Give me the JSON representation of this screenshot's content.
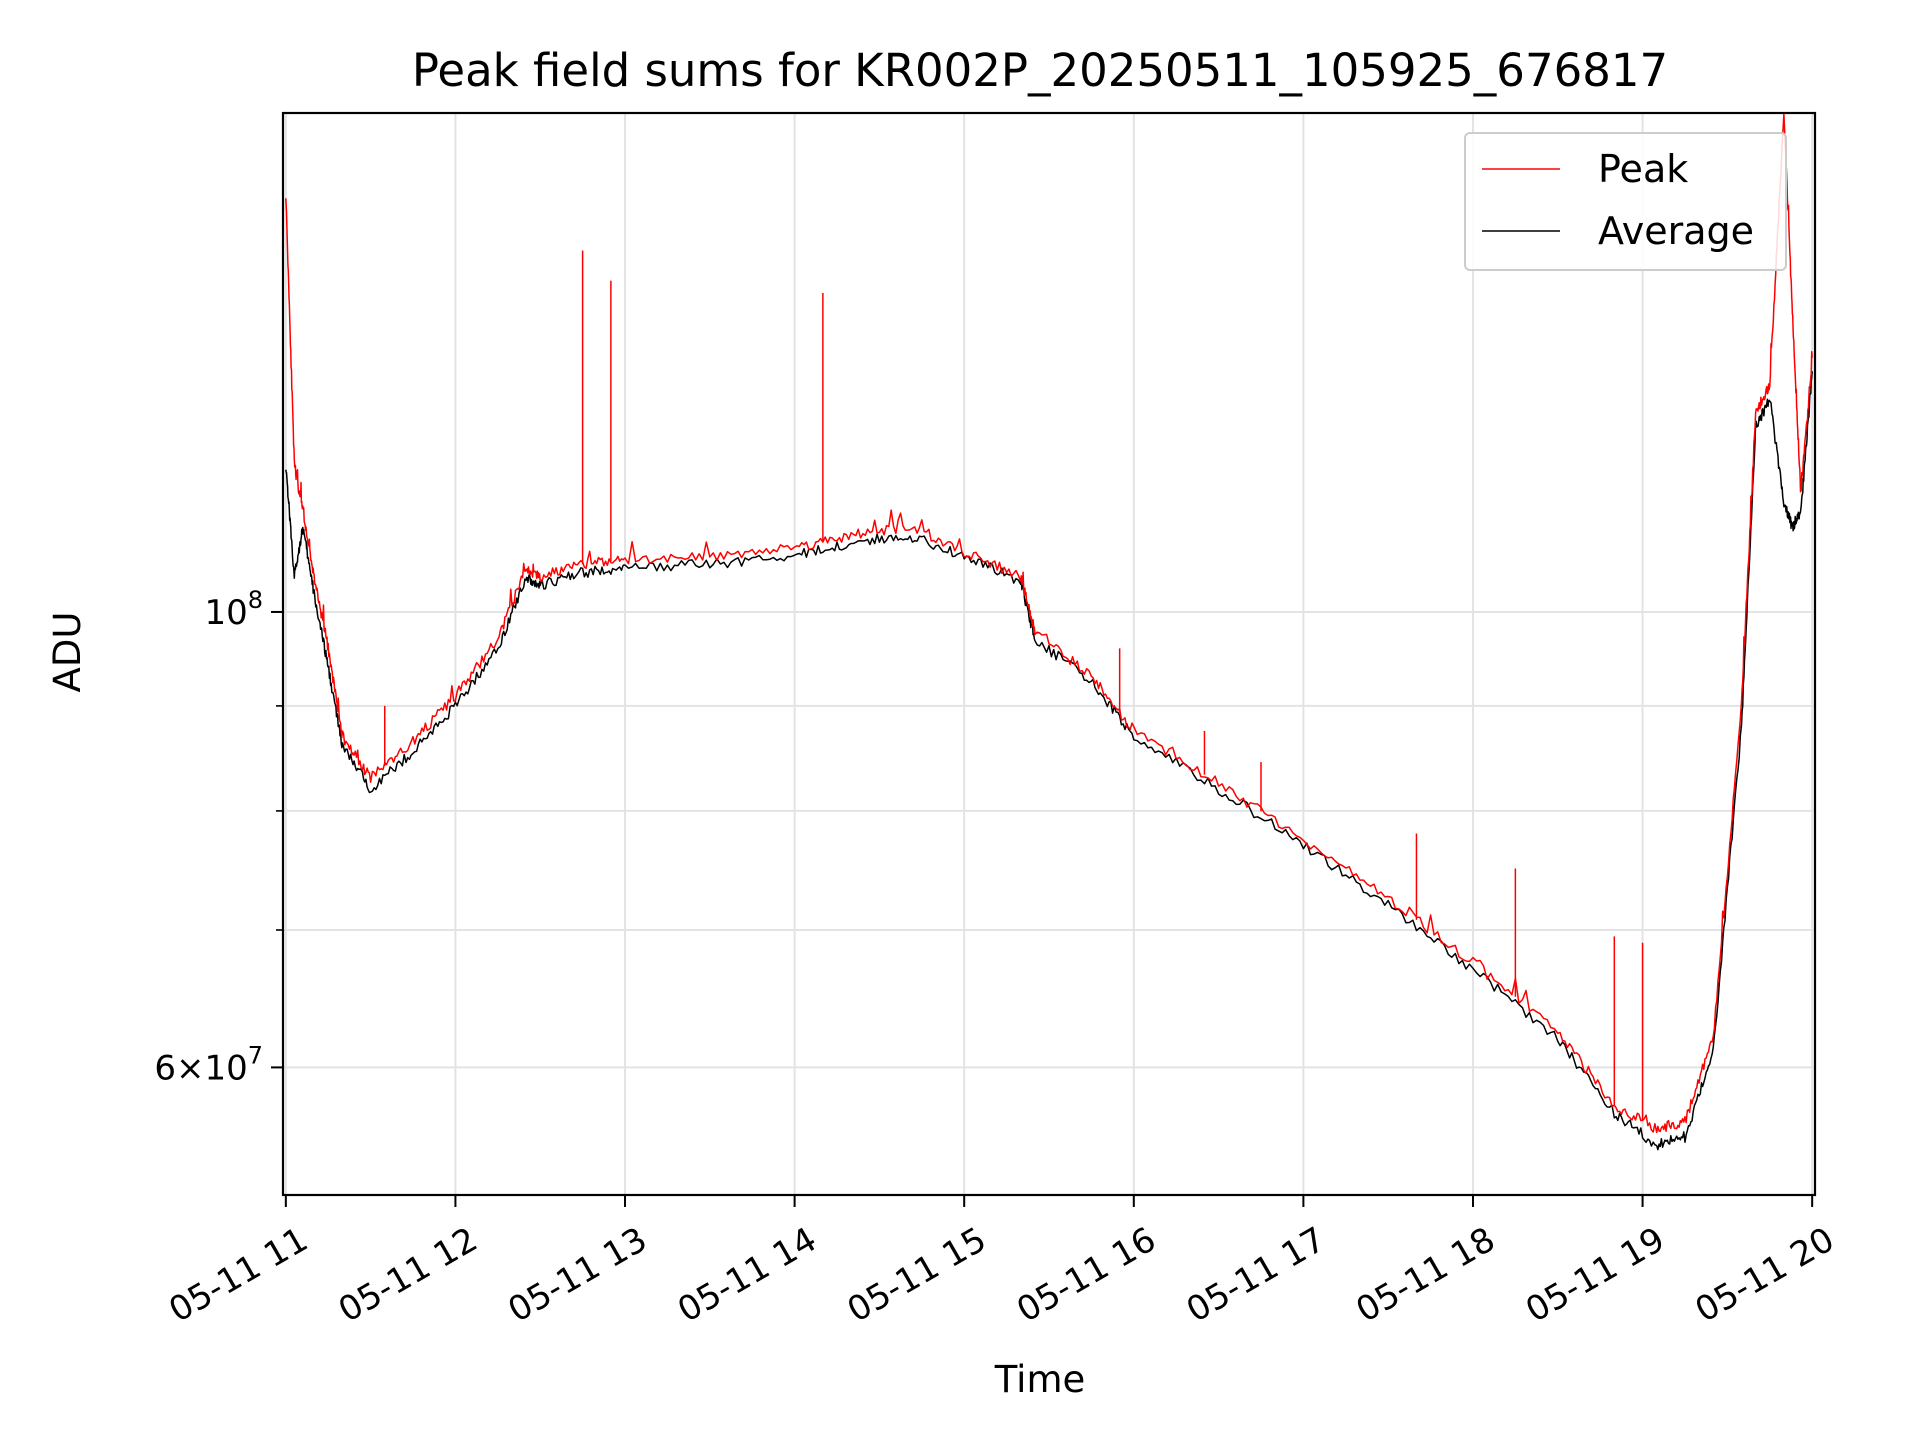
{
  "chart_data": {
    "type": "line",
    "title": "Peak field sums for KR002P_20250511_105925_676817",
    "xlabel": "Time",
    "ylabel": "ADU",
    "yscale": "log",
    "xlim": [
      "05-11 10:59",
      "05-11 20:01"
    ],
    "ylim": [
      52000000,
      175000000
    ],
    "grid": true,
    "legend_position": "top-right",
    "x_ticks": [
      "05-11 11",
      "05-11 12",
      "05-11 13",
      "05-11 14",
      "05-11 15",
      "05-11 16",
      "05-11 17",
      "05-11 18",
      "05-11 19",
      "05-11 20"
    ],
    "y_ticks": [
      "10^8",
      "6×10^7"
    ],
    "x": [
      "05-11 11:00",
      "05-11 11:03",
      "05-11 11:06",
      "05-11 11:10",
      "05-11 11:15",
      "05-11 11:20",
      "05-11 11:30",
      "05-11 11:45",
      "05-11 12:00",
      "05-11 12:15",
      "05-11 12:25",
      "05-11 12:30",
      "05-11 12:45",
      "05-11 13:00",
      "05-11 13:30",
      "05-11 14:00",
      "05-11 14:20",
      "05-11 14:40",
      "05-11 15:00",
      "05-11 15:20",
      "05-11 15:25",
      "05-11 15:45",
      "05-11 16:00",
      "05-11 16:30",
      "05-11 17:00",
      "05-11 17:30",
      "05-11 18:00",
      "05-11 18:30",
      "05-11 18:50",
      "05-11 19:05",
      "05-11 19:15",
      "05-11 19:25",
      "05-11 19:35",
      "05-11 19:40",
      "05-11 19:45",
      "05-11 19:50",
      "05-11 19:53",
      "05-11 19:56",
      "05-11 20:00"
    ],
    "series": [
      {
        "name": "Peak",
        "color": "#ff0000",
        "values": [
          160000000,
          118000000,
          112000000,
          104000000,
          96000000,
          87000000,
          83000000,
          86500000,
          91000000,
          97000000,
          105000000,
          104000000,
          105500000,
          106000000,
          106500000,
          107500000,
          109000000,
          110000000,
          107000000,
          104000000,
          98000000,
          93000000,
          87500000,
          82500000,
          77500000,
          72500000,
          67500000,
          62500000,
          57500000,
          56000000,
          56500000,
          62000000,
          90000000,
          125000000,
          129000000,
          175000000,
          140000000,
          114000000,
          133000000
        ]
      },
      {
        "name": "Average",
        "color": "#000000",
        "values": [
          118000000,
          104000000,
          110000000,
          102000000,
          94000000,
          86000000,
          82000000,
          85500000,
          90000000,
          96000000,
          104000000,
          103000000,
          104500000,
          105000000,
          105500000,
          106500000,
          108000000,
          109000000,
          106500000,
          103500000,
          97000000,
          92500000,
          87000000,
          82000000,
          77000000,
          72000000,
          67000000,
          62000000,
          57000000,
          55000000,
          55500000,
          61000000,
          88000000,
          123000000,
          127000000,
          113000000,
          110000000,
          112000000,
          131000000
        ]
      }
    ],
    "spikes": [
      {
        "series": "Peak",
        "x": "05-11 11:35",
        "y": 90000000
      },
      {
        "series": "Peak",
        "x": "05-11 12:45",
        "y": 150000000
      },
      {
        "series": "Peak",
        "x": "05-11 12:55",
        "y": 145000000
      },
      {
        "series": "Peak",
        "x": "05-11 14:10",
        "y": 143000000
      },
      {
        "series": "Peak",
        "x": "05-11 15:55",
        "y": 96000000
      },
      {
        "series": "Peak",
        "x": "05-11 16:25",
        "y": 87500000
      },
      {
        "series": "Peak",
        "x": "05-11 16:45",
        "y": 84500000
      },
      {
        "series": "Peak",
        "x": "05-11 17:40",
        "y": 78000000
      },
      {
        "series": "Peak",
        "x": "05-11 18:15",
        "y": 75000000
      },
      {
        "series": "Peak",
        "x": "05-11 18:50",
        "y": 69500000
      },
      {
        "series": "Peak",
        "x": "05-11 19:00",
        "y": 69000000
      }
    ]
  }
}
